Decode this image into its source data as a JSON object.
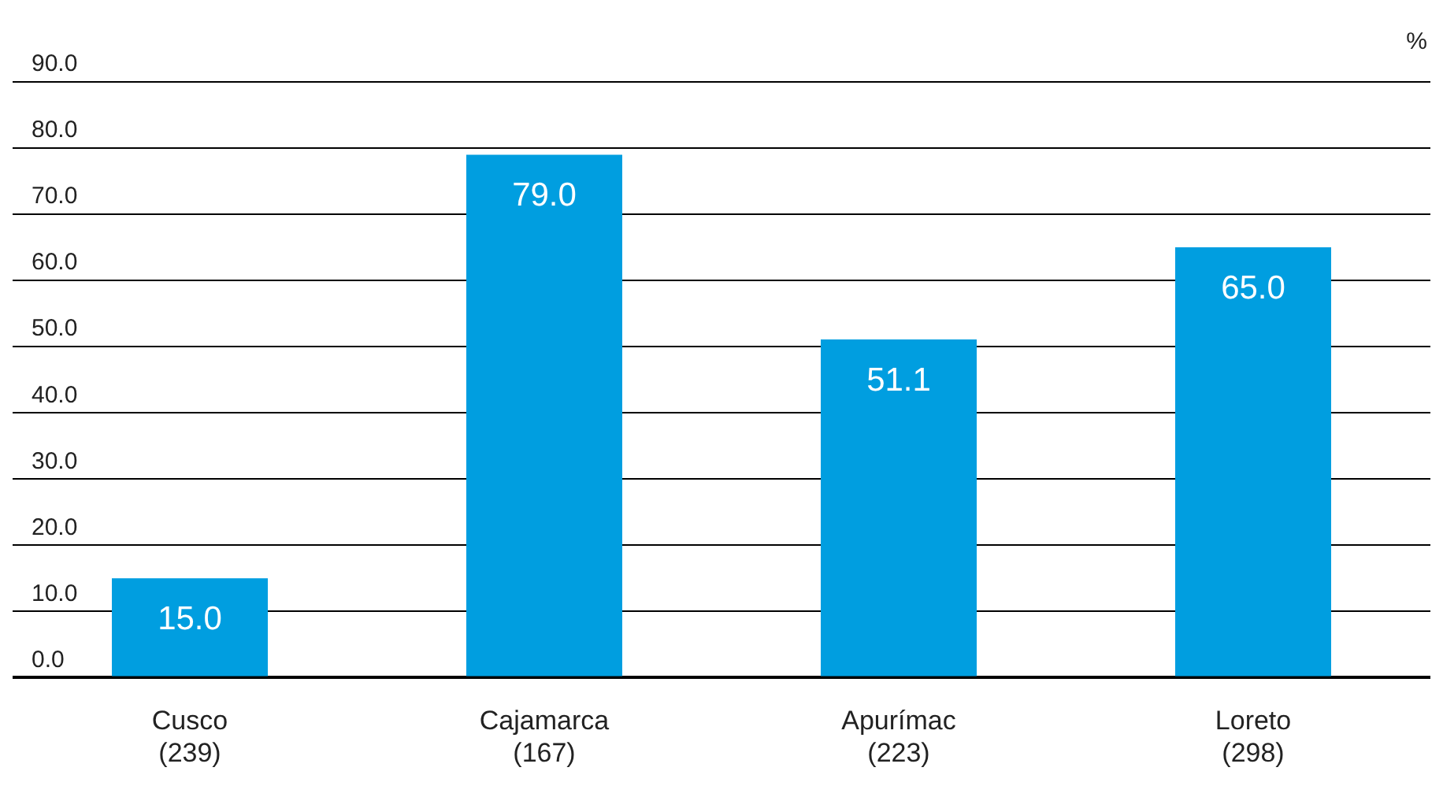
{
  "chart_data": {
    "type": "bar",
    "ylabel": "%",
    "categories": [
      "Cusco\n(239)",
      "Cajamarca\n(167)",
      "Apurímac\n(223)",
      "Loreto\n(298)"
    ],
    "values": [
      15.0,
      79.0,
      51.1,
      65.0
    ],
    "color": "#009ee0",
    "ylim": [
      0,
      90
    ],
    "yticks": [
      {
        "value": 0,
        "label": "0.0"
      },
      {
        "value": 10,
        "label": "10.0"
      },
      {
        "value": 20,
        "label": "20.0"
      },
      {
        "value": 30,
        "label": "30.0"
      },
      {
        "value": 40,
        "label": "40.0"
      },
      {
        "value": 50,
        "label": "50.0"
      },
      {
        "value": 60,
        "label": "60.0"
      },
      {
        "value": 70,
        "label": "70.0"
      },
      {
        "value": 80,
        "label": "80.0"
      },
      {
        "value": 90,
        "label": "90.0"
      }
    ],
    "grid": "y",
    "value_labels": [
      "15.0",
      "79.0",
      "51.1",
      "65.0"
    ]
  }
}
